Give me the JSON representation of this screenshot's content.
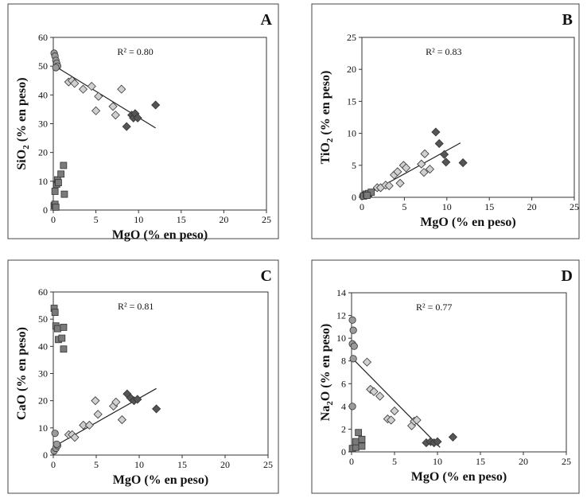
{
  "chart_data": [
    {
      "type": "scatter",
      "panel": "A",
      "xlabel": "MgO (% en peso)",
      "ylabel_main": "SiO",
      "ylabel_sub": "2",
      "ylabel_rest": " (% en peso)",
      "annotation": "R² = 0.80",
      "xlim": [
        0,
        25
      ],
      "ylim": [
        0,
        60
      ],
      "xticks": [
        0,
        5,
        10,
        15,
        20,
        25
      ],
      "yticks": [
        0,
        10,
        20,
        30,
        40,
        50,
        60
      ],
      "trendline": [
        [
          0.2,
          50
        ],
        [
          12,
          28.5
        ]
      ],
      "series": [
        {
          "marker": "circle",
          "color": "#9a9a9a",
          "points": [
            [
              0.1,
              54.5
            ],
            [
              0.2,
              53.5
            ],
            [
              0.3,
              52
            ],
            [
              0.4,
              51
            ],
            [
              0.5,
              50
            ],
            [
              0.3,
              49.5
            ]
          ]
        },
        {
          "marker": "square",
          "color": "#7a7a7a",
          "points": [
            [
              0.1,
              1.5
            ],
            [
              0.2,
              2
            ],
            [
              0.2,
              6.5
            ],
            [
              0.4,
              9
            ],
            [
              0.5,
              10.5
            ],
            [
              0.6,
              9.5
            ],
            [
              0.9,
              12.5
            ],
            [
              1.2,
              15.5
            ],
            [
              1.3,
              5.5
            ],
            [
              0.3,
              1
            ]
          ]
        },
        {
          "marker": "diamond",
          "color": "#d0d0d0",
          "points": [
            [
              1.8,
              44.5
            ],
            [
              2.2,
              45
            ],
            [
              2.5,
              44
            ],
            [
              3.5,
              42
            ],
            [
              4.5,
              43
            ],
            [
              5,
              34.5
            ],
            [
              5.3,
              39.5
            ],
            [
              7,
              36
            ],
            [
              7.3,
              33
            ],
            [
              8,
              42
            ]
          ]
        },
        {
          "marker": "diamond",
          "color": "#555555",
          "points": [
            [
              8.6,
              29
            ],
            [
              9.2,
              33
            ],
            [
              9.4,
              32
            ],
            [
              9.6,
              33.5
            ],
            [
              9.9,
              32
            ],
            [
              12,
              36.5
            ]
          ]
        }
      ]
    },
    {
      "type": "scatter",
      "panel": "B",
      "xlabel": "MgO (% en peso)",
      "ylabel_main": "TiO",
      "ylabel_sub": "2",
      "ylabel_rest": " (% en peso)",
      "annotation": "R² = 0.83",
      "xlim": [
        0,
        25
      ],
      "ylim": [
        0,
        25
      ],
      "xticks": [
        0,
        5,
        10,
        15,
        20,
        25
      ],
      "yticks": [
        0,
        5,
        10,
        15,
        20,
        25
      ],
      "trendline": [
        [
          0,
          0
        ],
        [
          11.6,
          8.5
        ]
      ],
      "series": [
        {
          "marker": "circle",
          "color": "#9a9a9a",
          "points": [
            [
              0.1,
              0.2
            ],
            [
              0.2,
              0.3
            ],
            [
              0.3,
              0.4
            ],
            [
              0.4,
              0.3
            ]
          ]
        },
        {
          "marker": "square",
          "color": "#7a7a7a",
          "points": [
            [
              0.2,
              0.2
            ],
            [
              0.5,
              0.5
            ],
            [
              0.8,
              0.6
            ],
            [
              1.1,
              0.8
            ],
            [
              0.6,
              0.3
            ]
          ]
        },
        {
          "marker": "diamond",
          "color": "#d0d0d0",
          "points": [
            [
              1.8,
              1.5
            ],
            [
              2.2,
              1.5
            ],
            [
              2.8,
              1.9
            ],
            [
              3.2,
              1.8
            ],
            [
              3.8,
              3.5
            ],
            [
              4.2,
              4
            ],
            [
              4.5,
              2.2
            ],
            [
              4.9,
              5
            ],
            [
              5.2,
              4.6
            ],
            [
              7,
              5.2
            ],
            [
              7.3,
              3.9
            ],
            [
              8,
              4.4
            ],
            [
              7.4,
              6.8
            ]
          ]
        },
        {
          "marker": "diamond",
          "color": "#555555",
          "points": [
            [
              8.7,
              10.2
            ],
            [
              9.1,
              8.4
            ],
            [
              9.7,
              6.7
            ],
            [
              9.9,
              5.5
            ],
            [
              11.9,
              5.4
            ]
          ]
        }
      ]
    },
    {
      "type": "scatter",
      "panel": "C",
      "xlabel": "MgO (% en peso)",
      "ylabel_main": "CaO (% en peso)",
      "ylabel_sub": "",
      "ylabel_rest": "",
      "annotation": "R² = 0.81",
      "xlim": [
        0,
        25
      ],
      "ylim": [
        0,
        60
      ],
      "xticks": [
        0,
        5,
        10,
        15,
        20,
        25
      ],
      "yticks": [
        0,
        10,
        20,
        30,
        40,
        50,
        60
      ],
      "trendline": [
        [
          0,
          3
        ],
        [
          12,
          24.5
        ]
      ],
      "series": [
        {
          "marker": "circle",
          "color": "#9a9a9a",
          "points": [
            [
              0.1,
              1.5
            ],
            [
              0.2,
              8
            ],
            [
              0.3,
              2.5
            ],
            [
              0.5,
              3.5
            ],
            [
              0.4,
              4
            ]
          ]
        },
        {
          "marker": "square",
          "color": "#7a7a7a",
          "points": [
            [
              0.1,
              54
            ],
            [
              0.2,
              52.5
            ],
            [
              0.3,
              47.5
            ],
            [
              0.5,
              46.5
            ],
            [
              0.6,
              42.5
            ],
            [
              1,
              43
            ],
            [
              1.2,
              47
            ],
            [
              1.2,
              39
            ]
          ]
        },
        {
          "marker": "diamond",
          "color": "#d0d0d0",
          "points": [
            [
              1.8,
              7.5
            ],
            [
              2.2,
              7.5
            ],
            [
              2.5,
              6.5
            ],
            [
              3.5,
              11
            ],
            [
              4.2,
              11
            ],
            [
              4.9,
              20
            ],
            [
              5.2,
              15
            ],
            [
              7,
              18
            ],
            [
              7.3,
              19.5
            ],
            [
              8,
              13
            ]
          ]
        },
        {
          "marker": "diamond",
          "color": "#555555",
          "points": [
            [
              8.6,
              22.5
            ],
            [
              9,
              21
            ],
            [
              9.4,
              20
            ],
            [
              9.8,
              20.5
            ],
            [
              12,
              17
            ]
          ]
        }
      ]
    },
    {
      "type": "scatter",
      "panel": "D",
      "xlabel": "MgO (% en peso)",
      "ylabel_main": "Na",
      "ylabel_sub": "2",
      "ylabel_rest": "O (% en peso)",
      "annotation": "R² = 0.77",
      "xlim": [
        0,
        25
      ],
      "ylim": [
        0,
        14
      ],
      "xticks": [
        0,
        5,
        10,
        15,
        20,
        25
      ],
      "yticks": [
        0,
        2,
        4,
        6,
        8,
        10,
        12,
        14
      ],
      "trendline": [
        [
          0,
          8.3
        ],
        [
          10.3,
          0.4
        ]
      ],
      "series": [
        {
          "marker": "circle",
          "color": "#9a9a9a",
          "points": [
            [
              0.1,
              11.6
            ],
            [
              0.2,
              10.7
            ],
            [
              0.1,
              9.5
            ],
            [
              0.3,
              9.3
            ],
            [
              0.2,
              8.2
            ],
            [
              0.1,
              4
            ]
          ]
        },
        {
          "marker": "square",
          "color": "#7a7a7a",
          "points": [
            [
              0.1,
              0.3
            ],
            [
              0.5,
              0.4
            ],
            [
              0.5,
              0.9
            ],
            [
              0.8,
              1.7
            ],
            [
              1.2,
              1.1
            ],
            [
              1.2,
              0.5
            ]
          ]
        },
        {
          "marker": "diamond",
          "color": "#d0d0d0",
          "points": [
            [
              1.8,
              7.9
            ],
            [
              2.2,
              5.5
            ],
            [
              2.6,
              5.3
            ],
            [
              3.3,
              4.9
            ],
            [
              4.2,
              2.9
            ],
            [
              4.6,
              2.8
            ],
            [
              5,
              3.6
            ],
            [
              7,
              2.3
            ],
            [
              7.3,
              2.7
            ],
            [
              7.6,
              2.8
            ]
          ]
        },
        {
          "marker": "diamond",
          "color": "#555555",
          "points": [
            [
              8.7,
              0.8
            ],
            [
              9.2,
              0.9
            ],
            [
              9.6,
              0.8
            ],
            [
              10,
              0.9
            ],
            [
              11.8,
              1.3
            ]
          ]
        }
      ]
    }
  ]
}
